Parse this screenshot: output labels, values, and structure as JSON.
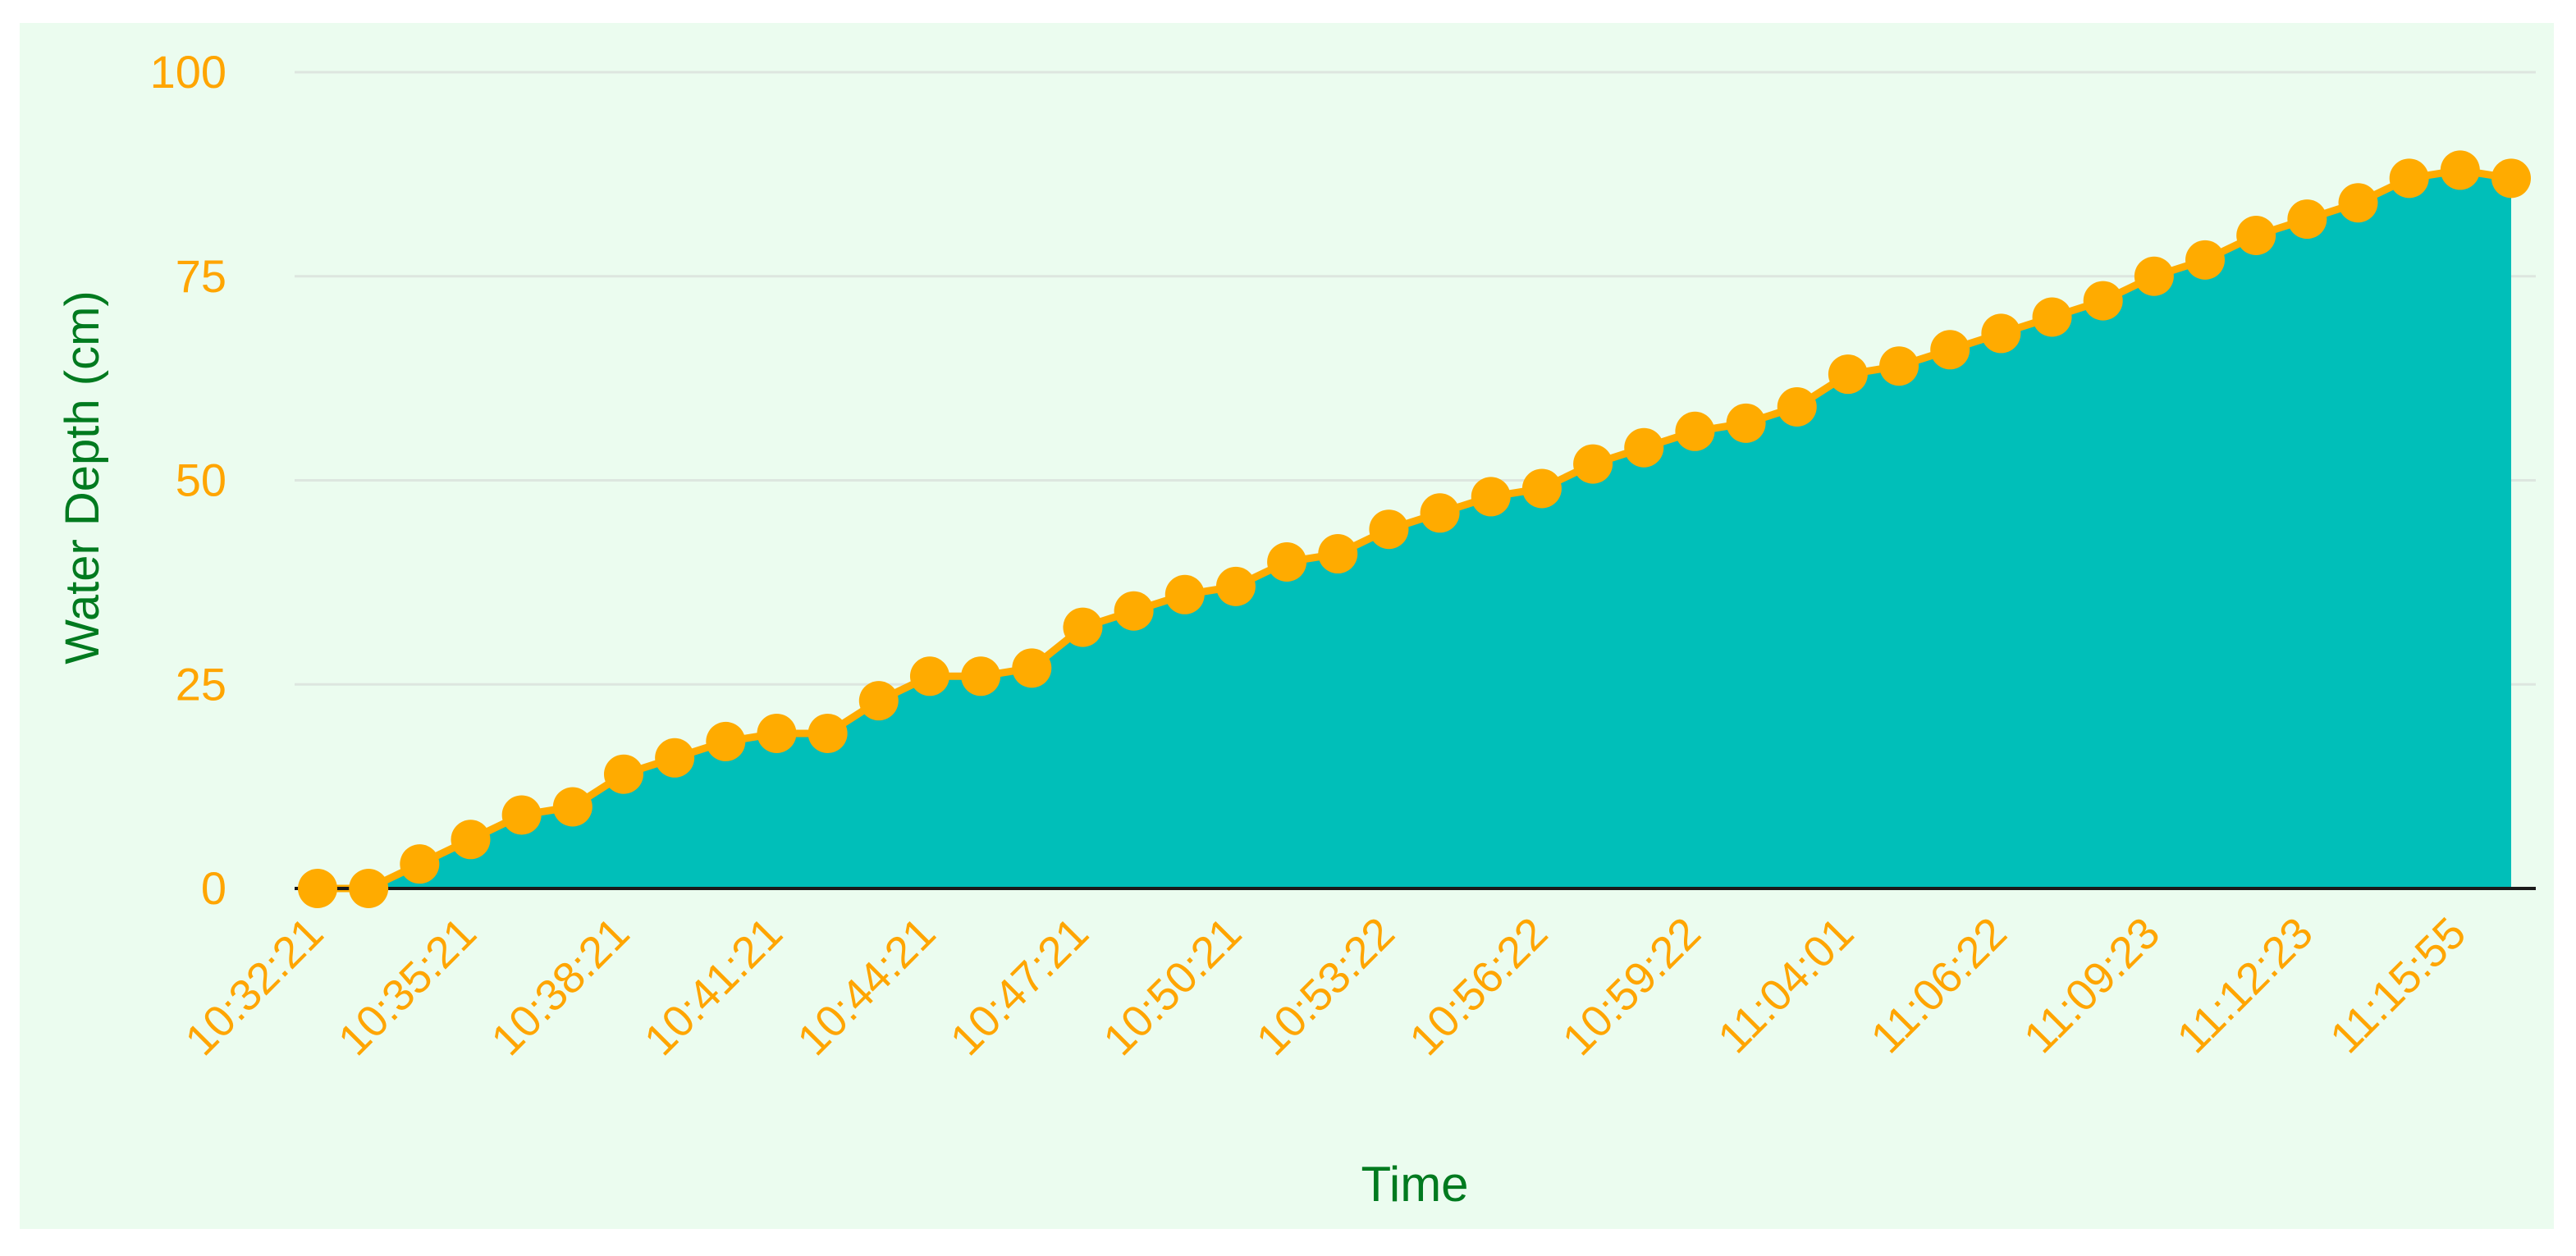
{
  "chart_data": {
    "type": "area",
    "title": "",
    "xlabel": "Time",
    "ylabel": "Water Depth (cm)",
    "ylim": [
      0,
      100
    ],
    "yticks": [
      "0",
      "25",
      "50",
      "75",
      "100"
    ],
    "x_tick_labels": [
      "10:32:21",
      "10:35:21",
      "10:38:21",
      "10:41:21",
      "10:44:21",
      "10:47:21",
      "10:50:21",
      "10:53:22",
      "10:56:22",
      "10:59:22",
      "11:04:01",
      "11:06:22",
      "11:09:23",
      "11:12:23",
      "11:15:55"
    ],
    "grid": true,
    "legend": "none",
    "series": [
      {
        "values": [
          0,
          0,
          3,
          6,
          9,
          10,
          14,
          16,
          18,
          19,
          19,
          23,
          26,
          26,
          27,
          32,
          34,
          36,
          37,
          40,
          41,
          44,
          46,
          48,
          49,
          52,
          54,
          56,
          57,
          59,
          63,
          64,
          66,
          68,
          70,
          72,
          75,
          77,
          80,
          82,
          84,
          87,
          88,
          87
        ]
      }
    ],
    "colors": {
      "fill": "#00bfb9",
      "line": "#ffab00",
      "marker": "#ffab00",
      "tick_text": "#ffa500",
      "axis_title": "#007a1f",
      "grid": "#dde6df",
      "baseline": "#1a1a1a",
      "panel_background": "#ebfcef"
    }
  }
}
